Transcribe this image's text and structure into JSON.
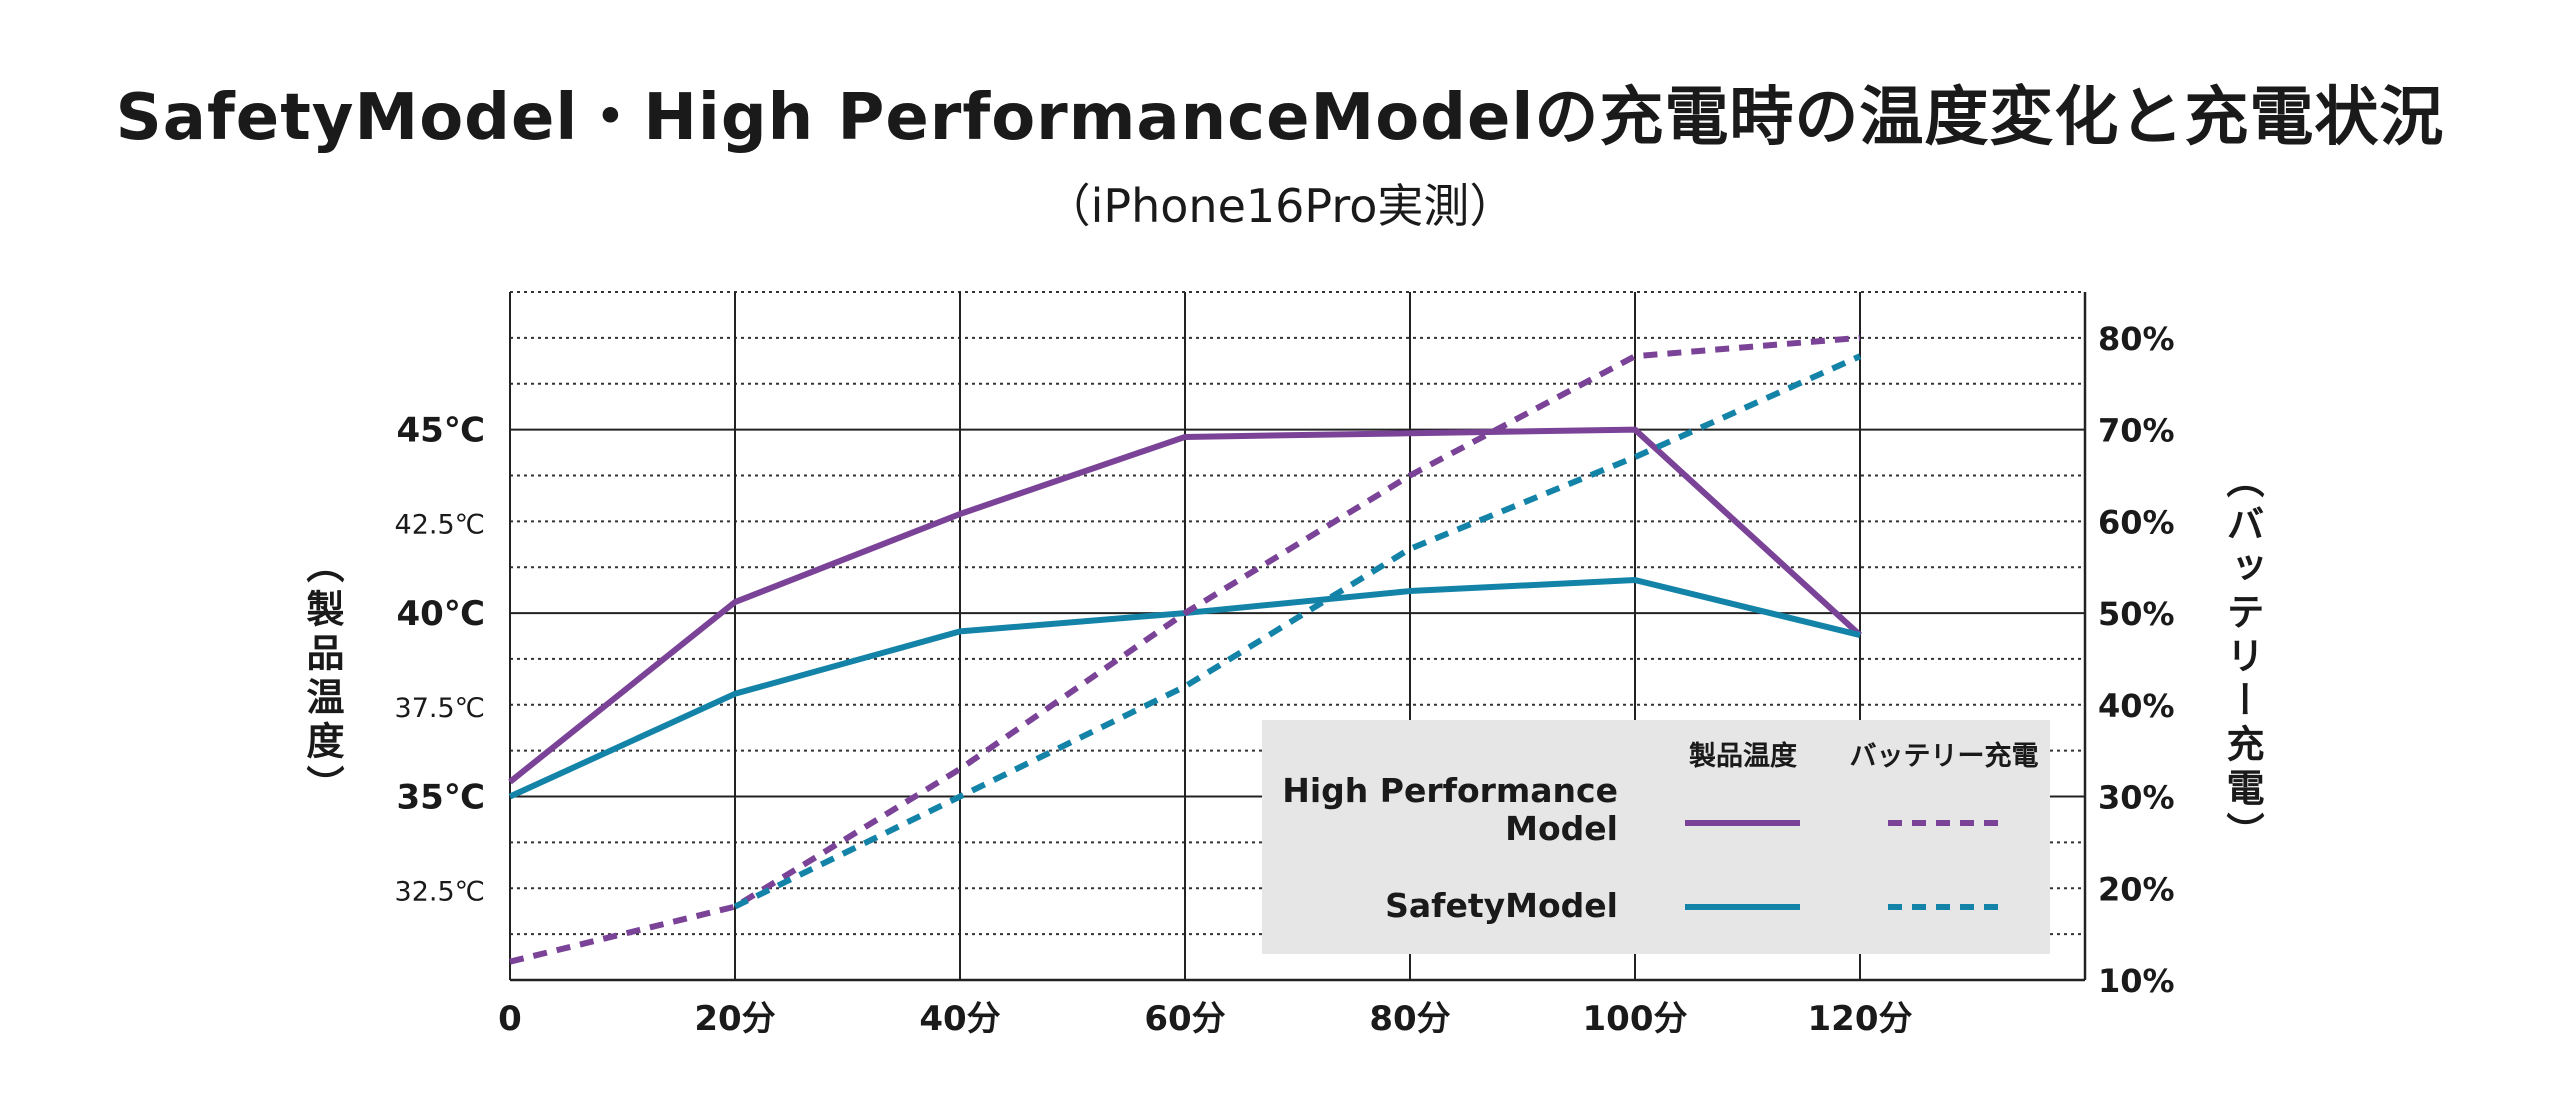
{
  "title": "SafetyModel・High PerformanceModelの充電時の温度変化と充電状況",
  "subtitle": "（iPhone16Pro実測）",
  "chart_data": {
    "type": "line",
    "x": [
      0,
      20,
      40,
      60,
      80,
      100,
      120
    ],
    "x_tick_labels": [
      "0",
      "20分",
      "40分",
      "60分",
      "80分",
      "100分",
      "120分"
    ],
    "xlim": [
      0,
      140
    ],
    "y_left_label": "（製品温度）",
    "y_right_label": "（バッテリー充電）",
    "y_left_ticks": [
      {
        "value": 32.5,
        "label": "32.5℃"
      },
      {
        "value": 35,
        "label": "35℃"
      },
      {
        "value": 37.5,
        "label": "37.5℃"
      },
      {
        "value": 40,
        "label": "40℃"
      },
      {
        "value": 42.5,
        "label": "42.5℃"
      },
      {
        "value": 45,
        "label": "45℃"
      }
    ],
    "y_left_lim": [
      30,
      48.75
    ],
    "y_right_ticks": [
      {
        "value": 10,
        "label": "10%"
      },
      {
        "value": 20,
        "label": "20%"
      },
      {
        "value": 30,
        "label": "30%"
      },
      {
        "value": 40,
        "label": "40%"
      },
      {
        "value": 50,
        "label": "50%"
      },
      {
        "value": 60,
        "label": "60%"
      },
      {
        "value": 70,
        "label": "70%"
      },
      {
        "value": 80,
        "label": "80%"
      }
    ],
    "y_right_lim": [
      10,
      85
    ],
    "series": [
      {
        "name": "High Performance Model",
        "kind": "temperature",
        "axis": "left",
        "color": "#7b4397",
        "values": [
          35.4,
          40.3,
          42.7,
          44.8,
          44.9,
          45.0,
          39.4
        ]
      },
      {
        "name": "SafetyModel",
        "kind": "temperature",
        "axis": "left",
        "color": "#1483a8",
        "values": [
          35.0,
          37.8,
          39.5,
          40.0,
          40.6,
          40.9,
          39.4
        ]
      },
      {
        "name": "High Performance Model",
        "kind": "battery",
        "axis": "right",
        "color": "#7b4397",
        "values": [
          12,
          18,
          33,
          50,
          65,
          78,
          80
        ]
      },
      {
        "name": "SafetyModel",
        "kind": "battery",
        "axis": "right",
        "color": "#1483a8",
        "values": [
          null,
          18,
          30,
          42,
          57,
          67,
          78
        ]
      }
    ],
    "legend": {
      "position": "bottom-right",
      "col_temp": "製品温度",
      "col_battery": "バッテリー充電",
      "rows": [
        "High Performance\nModel",
        "SafetyModel"
      ]
    }
  }
}
